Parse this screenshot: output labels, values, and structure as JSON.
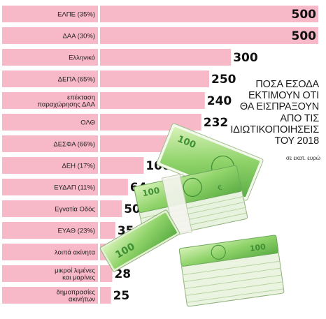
{
  "chart_data": {
    "type": "bar",
    "orientation": "horizontal",
    "title_lines": [
      "ΠΟΣΑ ΕΣΟΔΑ",
      "ΕΚΤΙΜΟΥΝ ΟΤΙ",
      "ΘΑ ΕΙΣΠΡΑΞΟΥΝ",
      "ΑΠΟ ΤΙΣ",
      "ΙΔΙΩΤΙΚΟΠΟΙΗΣΕΙΣ",
      "ΤΟΥ 2018"
    ],
    "unit_note": "σε εκατ. ευρώ",
    "categories": [
      [
        "ΕΛΠΕ (35%)"
      ],
      [
        "ΔΑΑ (30%)"
      ],
      [
        "Ελληνικό"
      ],
      [
        "ΔΕΠΑ (65%)"
      ],
      [
        "επέκταση",
        "παραχώρησης ΔΑΑ"
      ],
      [
        "ΟΛΘ"
      ],
      [
        "ΔΕΣΦΑ (66%)"
      ],
      [
        "ΔΕΗ (17%)"
      ],
      [
        "ΕΥΔΑΠ (11%)"
      ],
      [
        "Εγνατία Οδός"
      ],
      [
        "ΕΥΑΘ (23%)"
      ],
      [
        "λοιπά ακίνητα"
      ],
      [
        "μικροί λιμένες",
        "και μαρίνες"
      ],
      [
        "δημοπρασίες",
        "ακινήτων"
      ]
    ],
    "values": [
      500,
      500,
      300,
      250,
      240,
      232,
      188,
      100,
      64,
      50,
      35,
      31,
      28,
      25
    ],
    "xlim": [
      0,
      500
    ],
    "colors": {
      "bar": "#f7b8c8",
      "label_box": "#f7b8c8",
      "bill_green": "#8fd36a",
      "bill_dark": "#3f8f34",
      "bill_light": "#d8f2b8"
    }
  }
}
